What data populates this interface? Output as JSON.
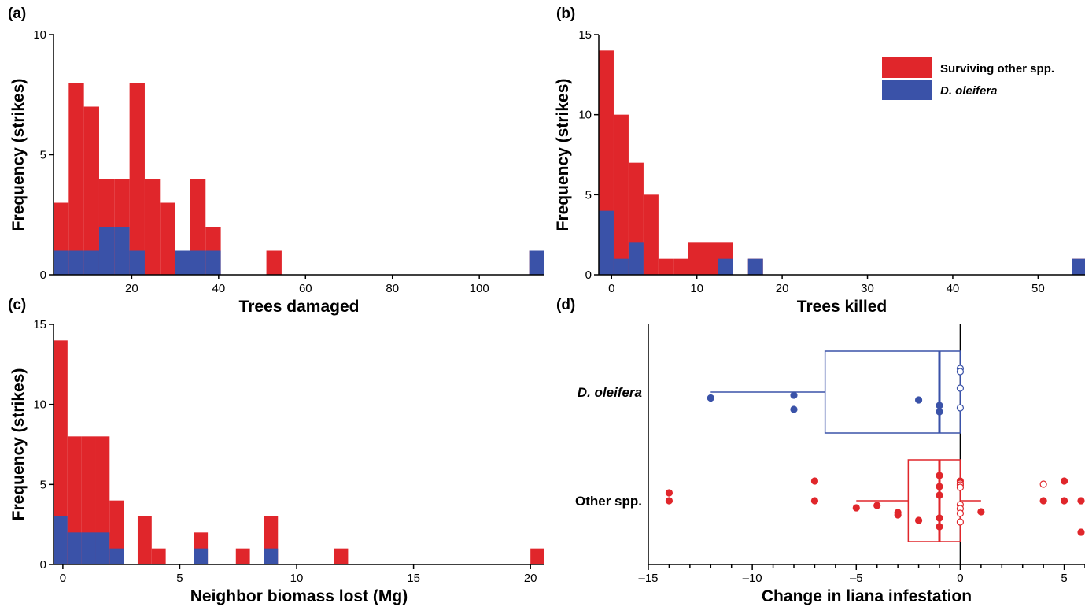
{
  "colors": {
    "red": "#e0262b",
    "blue": "#3a52a8",
    "axis": "#000000"
  },
  "legend": [
    {
      "label": "Surviving other spp.",
      "color": "#e0262b",
      "italic": false
    },
    {
      "label": "D. oleifera",
      "color": "#3a52a8",
      "italic": true
    }
  ],
  "chart_data": [
    {
      "type": "bar",
      "panel": "(a)",
      "xlabel": "Trees damaged",
      "ylabel": "Frequency (strikes)",
      "xlim": [
        2,
        115
      ],
      "ylim": [
        0,
        10
      ],
      "xticks": [
        20,
        40,
        60,
        80,
        100
      ],
      "yticks": [
        0,
        5,
        10
      ],
      "bin_width": 3.5,
      "bins": [
        {
          "x0": 2.0,
          "other": 3,
          "dole": 1
        },
        {
          "x0": 5.5,
          "other": 8,
          "dole": 1
        },
        {
          "x0": 9.0,
          "other": 7,
          "dole": 1
        },
        {
          "x0": 12.5,
          "other": 4,
          "dole": 2
        },
        {
          "x0": 16.0,
          "other": 4,
          "dole": 2
        },
        {
          "x0": 19.5,
          "other": 8,
          "dole": 1
        },
        {
          "x0": 23.0,
          "other": 4,
          "dole": 0
        },
        {
          "x0": 26.5,
          "other": 3,
          "dole": 0
        },
        {
          "x0": 30.0,
          "other": 1,
          "dole": 1
        },
        {
          "x0": 33.5,
          "other": 4,
          "dole": 1
        },
        {
          "x0": 37.0,
          "other": 2,
          "dole": 1
        },
        {
          "x0": 51.0,
          "other": 1,
          "dole": 0
        },
        {
          "x0": 111.5,
          "other": 1,
          "dole": 1
        }
      ]
    },
    {
      "type": "bar",
      "panel": "(b)",
      "xlabel": "Trees killed",
      "ylabel": "Frequency (strikes)",
      "xlim": [
        -1.5,
        55.5
      ],
      "ylim": [
        0,
        15
      ],
      "xticks": [
        0,
        10,
        20,
        30,
        40,
        50
      ],
      "yticks": [
        0,
        5,
        10,
        15
      ],
      "bin_width": 1.75,
      "bins": [
        {
          "x0": -1.5,
          "other": 14,
          "dole": 4
        },
        {
          "x0": 0.25,
          "other": 10,
          "dole": 1
        },
        {
          "x0": 2.0,
          "other": 7,
          "dole": 2
        },
        {
          "x0": 3.75,
          "other": 5,
          "dole": 0
        },
        {
          "x0": 5.5,
          "other": 1,
          "dole": 0
        },
        {
          "x0": 7.25,
          "other": 1,
          "dole": 0
        },
        {
          "x0": 9.0,
          "other": 2,
          "dole": 0
        },
        {
          "x0": 10.75,
          "other": 2,
          "dole": 0
        },
        {
          "x0": 12.5,
          "other": 2,
          "dole": 1
        },
        {
          "x0": 16.0,
          "other": 1,
          "dole": 1
        },
        {
          "x0": 54.0,
          "other": 1,
          "dole": 1
        }
      ]
    },
    {
      "type": "bar",
      "panel": "(c)",
      "xlabel": "Neighbor biomass lost (Mg)",
      "ylabel": "Frequency (strikes)",
      "xlim": [
        -0.4,
        20.6
      ],
      "ylim": [
        0,
        15
      ],
      "xticks": [
        0,
        5,
        10,
        15,
        20
      ],
      "yticks": [
        0,
        5,
        10,
        15
      ],
      "bin_width": 0.6,
      "bins": [
        {
          "x0": -0.4,
          "other": 14,
          "dole": 3
        },
        {
          "x0": 0.2,
          "other": 8,
          "dole": 2
        },
        {
          "x0": 0.8,
          "other": 8,
          "dole": 2
        },
        {
          "x0": 1.4,
          "other": 8,
          "dole": 2
        },
        {
          "x0": 2.0,
          "other": 4,
          "dole": 1
        },
        {
          "x0": 3.2,
          "other": 3,
          "dole": 0
        },
        {
          "x0": 3.8,
          "other": 1,
          "dole": 0
        },
        {
          "x0": 5.6,
          "other": 2,
          "dole": 1
        },
        {
          "x0": 7.4,
          "other": 1,
          "dole": 0
        },
        {
          "x0": 8.6,
          "other": 3,
          "dole": 1
        },
        {
          "x0": 11.6,
          "other": 1,
          "dole": 0
        },
        {
          "x0": 20.0,
          "other": 1,
          "dole": 0
        }
      ]
    },
    {
      "type": "scatter",
      "panel": "(d)",
      "xlabel": "Change in liana infestation",
      "xlim": [
        -15,
        6
      ],
      "xticks": [
        -15,
        -10,
        -5,
        0,
        5
      ],
      "categories": [
        "D. oleifera",
        "Other spp."
      ],
      "boxes": [
        {
          "category": "D. oleifera",
          "color": "#3a52a8",
          "q1": -6.5,
          "median": -1,
          "q3": 0,
          "whisker_low": -12,
          "whisker_high": 0
        },
        {
          "category": "Other spp.",
          "color": "#e0262b",
          "q1": -2.5,
          "median": -1,
          "q3": 0,
          "whisker_low": -5,
          "whisker_high": 1
        }
      ],
      "points": [
        {
          "category": "D. oleifera",
          "x": -12,
          "jitter": -0.3,
          "open": false
        },
        {
          "category": "D. oleifera",
          "x": -8,
          "jitter": -0.16,
          "open": false
        },
        {
          "category": "D. oleifera",
          "x": -8,
          "jitter": -0.88,
          "open": false
        },
        {
          "category": "D. oleifera",
          "x": -2,
          "jitter": -0.4,
          "open": false
        },
        {
          "category": "D. oleifera",
          "x": -1,
          "jitter": -0.68,
          "open": false
        },
        {
          "category": "D. oleifera",
          "x": -1,
          "jitter": -1.0,
          "open": false
        },
        {
          "category": "D. oleifera",
          "x": 0,
          "jitter": 1.2,
          "open": true
        },
        {
          "category": "D. oleifera",
          "x": 0,
          "jitter": 1.04,
          "open": true
        },
        {
          "category": "D. oleifera",
          "x": 0,
          "jitter": 0.2,
          "open": true
        },
        {
          "category": "D. oleifera",
          "x": 0,
          "jitter": -0.8,
          "open": true
        },
        {
          "category": "Other spp.",
          "x": -14,
          "jitter": 0.4,
          "open": false
        },
        {
          "category": "Other spp.",
          "x": -14,
          "jitter": 0.0,
          "open": false
        },
        {
          "category": "Other spp.",
          "x": -7,
          "jitter": 1.0,
          "open": false
        },
        {
          "category": "Other spp.",
          "x": -7,
          "jitter": 0.0,
          "open": false
        },
        {
          "category": "Other spp.",
          "x": -5,
          "jitter": -0.36,
          "open": false
        },
        {
          "category": "Other spp.",
          "x": -4,
          "jitter": -0.24,
          "open": false
        },
        {
          "category": "Other spp.",
          "x": -3,
          "jitter": -0.6,
          "open": false
        },
        {
          "category": "Other spp.",
          "x": -3,
          "jitter": -0.72,
          "open": false
        },
        {
          "category": "Other spp.",
          "x": -2,
          "jitter": -1.0,
          "open": false
        },
        {
          "category": "Other spp.",
          "x": -1,
          "jitter": 1.28,
          "open": false
        },
        {
          "category": "Other spp.",
          "x": -1,
          "jitter": 0.72,
          "open": false
        },
        {
          "category": "Other spp.",
          "x": -1,
          "jitter": 0.28,
          "open": false
        },
        {
          "category": "Other spp.",
          "x": -1,
          "jitter": -0.88,
          "open": false
        },
        {
          "category": "Other spp.",
          "x": -1,
          "jitter": -1.32,
          "open": false
        },
        {
          "category": "Other spp.",
          "x": 0,
          "jitter": 1.0,
          "open": false
        },
        {
          "category": "Other spp.",
          "x": 0,
          "jitter": 0.88,
          "open": true
        },
        {
          "category": "Other spp.",
          "x": 0,
          "jitter": 0.8,
          "open": true
        },
        {
          "category": "Other spp.",
          "x": 0,
          "jitter": 0.68,
          "open": true
        },
        {
          "category": "Other spp.",
          "x": 0,
          "jitter": -0.2,
          "open": true
        },
        {
          "category": "Other spp.",
          "x": 0,
          "jitter": -0.4,
          "open": true
        },
        {
          "category": "Other spp.",
          "x": 0,
          "jitter": -0.64,
          "open": true
        },
        {
          "category": "Other spp.",
          "x": 0,
          "jitter": -1.08,
          "open": true
        },
        {
          "category": "Other spp.",
          "x": 1,
          "jitter": -0.56,
          "open": false
        },
        {
          "category": "Other spp.",
          "x": 4,
          "jitter": 0.84,
          "open": true
        },
        {
          "category": "Other spp.",
          "x": 4,
          "jitter": 0.0,
          "open": false
        },
        {
          "category": "Other spp.",
          "x": 5,
          "jitter": 1.0,
          "open": false
        },
        {
          "category": "Other spp.",
          "x": 5,
          "jitter": 0.0,
          "open": false
        },
        {
          "category": "Other spp.",
          "x": 6,
          "jitter": 0.0,
          "open": false
        },
        {
          "category": "Other spp.",
          "x": 6,
          "jitter": -1.6,
          "open": false
        }
      ]
    }
  ]
}
